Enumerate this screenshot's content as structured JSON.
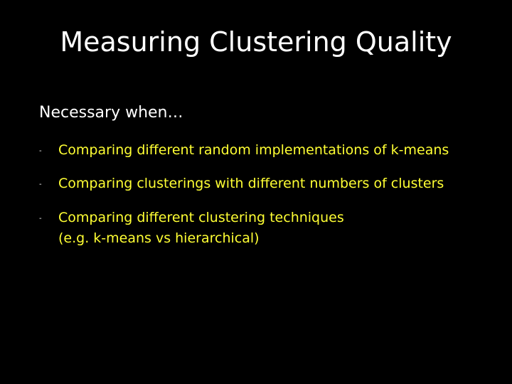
{
  "slide": {
    "title": "Measuring Clustering Quality",
    "lead": "Necessary when…",
    "bullet_marker": "-",
    "bullets": [
      {
        "lines": [
          "Comparing different random implementations of k-means"
        ]
      },
      {
        "lines": [
          "Comparing clusterings with different numbers of clusters"
        ]
      },
      {
        "lines": [
          "Comparing different clustering techniques",
          "(e.g. k-means vs hierarchical)"
        ]
      }
    ]
  },
  "colors": {
    "background": "#000000",
    "title": "#ffffff",
    "lead": "#ffffff",
    "bullet_text": "#ffff33"
  }
}
